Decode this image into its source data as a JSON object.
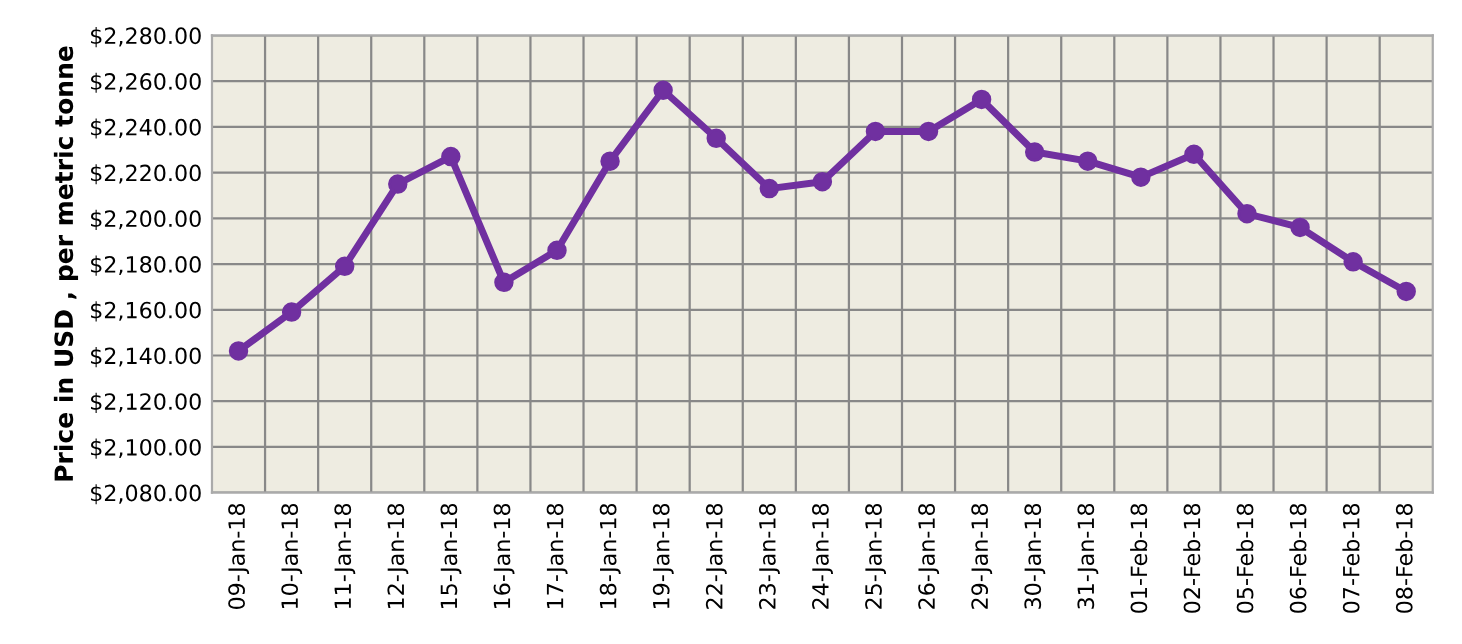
{
  "chart_data": {
    "type": "line",
    "ylabel": "Price in USD , per metric tonne",
    "categories": [
      "09-Jan-18",
      "10-Jan-18",
      "11-Jan-18",
      "12-Jan-18",
      "15-Jan-18",
      "16-Jan-18",
      "17-Jan-18",
      "18-Jan-18",
      "19-Jan-18",
      "22-Jan-18",
      "23-Jan-18",
      "24-Jan-18",
      "25-Jan-18",
      "26-Jan-18",
      "29-Jan-18",
      "30-Jan-18",
      "31-Jan-18",
      "01-Feb-18",
      "02-Feb-18",
      "05-Feb-18",
      "06-Feb-18",
      "07-Feb-18",
      "08-Feb-18"
    ],
    "series": [
      {
        "color": "#7030a0",
        "values": [
          2142,
          2159,
          2179,
          2215,
          2227,
          2172,
          2186,
          2225,
          2256,
          2235,
          2213,
          2216,
          2238,
          2238,
          2252,
          2229,
          2225,
          2218,
          2228,
          2202,
          2196,
          2181,
          2168
        ]
      }
    ],
    "ylim": [
      2080,
      2280
    ],
    "yticks": [
      {
        "value": 2080,
        "label": "$2,080.00"
      },
      {
        "value": 2100,
        "label": "$2,100.00"
      },
      {
        "value": 2120,
        "label": "$2,120.00"
      },
      {
        "value": 2140,
        "label": "$2,140.00"
      },
      {
        "value": 2160,
        "label": "$2,160.00"
      },
      {
        "value": 2180,
        "label": "$2,180.00"
      },
      {
        "value": 2200,
        "label": "$2,200.00"
      },
      {
        "value": 2220,
        "label": "$2,220.00"
      },
      {
        "value": 2240,
        "label": "$2,240.00"
      },
      {
        "value": 2260,
        "label": "$2,260.00"
      },
      {
        "value": 2280,
        "label": "$2,280.00"
      }
    ],
    "grid": true,
    "marker": "circle",
    "line_style": "solid"
  }
}
